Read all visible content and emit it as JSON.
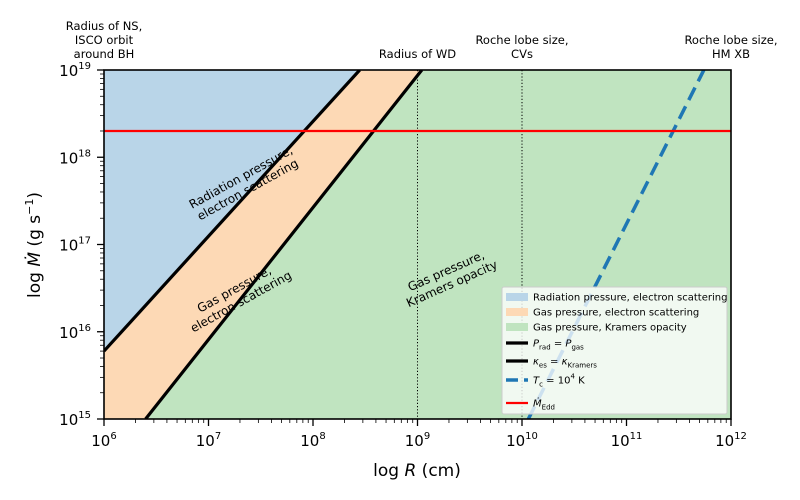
{
  "chart_data": {
    "type": "area",
    "xlabel": {
      "pre": "log ",
      "var": "R",
      "post": " (cm)"
    },
    "ylabel": {
      "pre": "log ",
      "var": "Ṁ",
      "post": " (g s",
      "sup": "−1",
      "close": ")"
    },
    "xscale": "log",
    "yscale": "log",
    "xlim": [
      1000000.0,
      1000000000000.0
    ],
    "ylim": [
      1000000000000000.0,
      1e+19
    ],
    "x_ticks": [
      {
        "value": 1000000.0,
        "base": "10",
        "exp": "6"
      },
      {
        "value": 10000000.0,
        "base": "10",
        "exp": "7"
      },
      {
        "value": 100000000.0,
        "base": "10",
        "exp": "8"
      },
      {
        "value": 1000000000.0,
        "base": "10",
        "exp": "9"
      },
      {
        "value": 10000000000.0,
        "base": "10",
        "exp": "10"
      },
      {
        "value": 100000000000.0,
        "base": "10",
        "exp": "11"
      },
      {
        "value": 1000000000000.0,
        "base": "10",
        "exp": "12"
      }
    ],
    "y_ticks": [
      {
        "value": 1000000000000000.0,
        "base": "10",
        "exp": "15"
      },
      {
        "value": 1e+16,
        "base": "10",
        "exp": "16"
      },
      {
        "value": 1e+17,
        "base": "10",
        "exp": "17"
      },
      {
        "value": 1e+18,
        "base": "10",
        "exp": "18"
      },
      {
        "value": 1e+19,
        "base": "10",
        "exp": "19"
      }
    ],
    "regions": [
      {
        "key": "radiation",
        "name": "Radiation pressure, electron scattering",
        "color": "#b9d5e8"
      },
      {
        "key": "gas_es",
        "name": "Gas pressure, electron scattering",
        "color": "#fdd9b5"
      },
      {
        "key": "gas_kr",
        "name": "Gas pressure, Kramers opacity",
        "color": "#c0e4c0"
      }
    ],
    "lines": [
      {
        "key": "prad_pgas",
        "color": "#000000",
        "style": "solid",
        "points": [
          [
            1000000.0,
            6000000000000000.0
          ],
          [
            280000000.0,
            1e+19
          ]
        ]
      },
      {
        "key": "kes_kkr",
        "color": "#000000",
        "style": "solid",
        "points": [
          [
            2500000.0,
            1000000000000000.0
          ],
          [
            1100000000.0,
            1e+19
          ]
        ]
      },
      {
        "key": "tc",
        "color": "#1f77b4",
        "style": "dashed",
        "points": [
          [
            11500000000.0,
            1000000000000000.0
          ],
          [
            550000000000.0,
            1e+19
          ]
        ]
      },
      {
        "key": "medd",
        "color": "#ff0000",
        "style": "solid",
        "points": [
          [
            1000000.0,
            2e+18
          ],
          [
            1000000000000.0,
            2e+18
          ]
        ]
      }
    ],
    "vlines": [
      {
        "x": 1000000000.0,
        "style": "dotted",
        "color": "#000000"
      },
      {
        "x": 10000000000.0,
        "style": "dotted",
        "color": "#000000"
      }
    ],
    "region_labels": [
      {
        "lines": [
          "Radiation pressure,",
          "electron scattering"
        ],
        "x": 22000000.0,
        "y": 5e+17,
        "angle": -29
      },
      {
        "lines": [
          "Gas pressure,",
          "electron scattering"
        ],
        "x": 19000000.0,
        "y": 2.6e+16,
        "angle": -29
      },
      {
        "lines": [
          "Gas pressure,",
          "Kramers opacity"
        ],
        "x": 2000000000.0,
        "y": 4.2e+16,
        "angle": -24
      }
    ],
    "top_annotations": [
      {
        "lines": [
          "Radius of NS,",
          "ISCO orbit",
          "around BH"
        ],
        "x": 1000000.0
      },
      {
        "lines": [
          "Radius of WD"
        ],
        "x": 1000000000.0
      },
      {
        "lines": [
          "Roche lobe size,",
          "CVs"
        ],
        "x": 10000000000.0
      },
      {
        "lines": [
          "Roche lobe size,",
          "HM XB"
        ],
        "x": 1000000000000.0
      }
    ],
    "legend": {
      "position": "lower right",
      "entries": [
        {
          "kind": "patch",
          "ref": "radiation",
          "text": "Radiation pressure, electron scattering"
        },
        {
          "kind": "patch",
          "ref": "gas_es",
          "text": "Gas pressure, electron scattering"
        },
        {
          "kind": "patch",
          "ref": "gas_kr",
          "text": "Gas pressure, Kramers opacity"
        },
        {
          "kind": "line",
          "ref": "prad_pgas",
          "math": [
            {
              "t": "P",
              "i": true
            },
            {
              "t": "rad",
              "sub": true
            },
            {
              "t": " = "
            },
            {
              "t": "P",
              "i": true
            },
            {
              "t": "gas",
              "sub": true
            }
          ]
        },
        {
          "kind": "line",
          "ref": "kes_kkr",
          "math": [
            {
              "t": "κ",
              "i": true
            },
            {
              "t": "es",
              "sub": true
            },
            {
              "t": " = "
            },
            {
              "t": "κ",
              "i": true
            },
            {
              "t": "Kramers",
              "sub": true
            }
          ]
        },
        {
          "kind": "dash",
          "ref": "tc",
          "math": [
            {
              "t": "T",
              "i": true
            },
            {
              "t": "c",
              "sub": true
            },
            {
              "t": " = 10"
            },
            {
              "t": "4",
              "sup": true
            },
            {
              "t": " K"
            }
          ]
        },
        {
          "kind": "line",
          "ref": "medd",
          "math": [
            {
              "t": "Ṁ",
              "i": true
            },
            {
              "t": "Edd",
              "sub": true
            }
          ]
        }
      ]
    }
  }
}
